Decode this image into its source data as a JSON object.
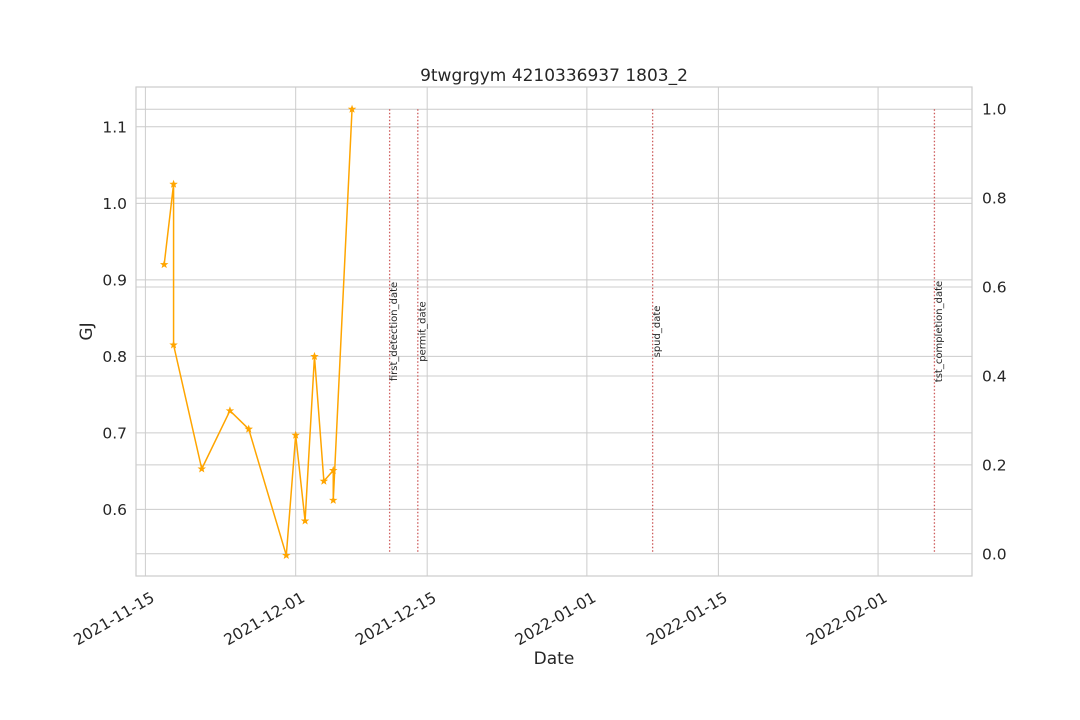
{
  "chart_data": {
    "type": "line",
    "title": "9twgrgym 4210336937 1803_2",
    "xlabel": "Date",
    "ylabel": "GJ",
    "ylabel_color": "#1f77b4",
    "x_type": "date",
    "xlim": [
      "2021-11-14",
      "2022-02-11"
    ],
    "ylim": [
      0.513,
      1.152
    ],
    "ylim_right": [
      -0.05,
      1.05
    ],
    "x_ticks": [
      "2021-11-15",
      "2021-12-01",
      "2021-12-15",
      "2022-01-01",
      "2022-01-15",
      "2022-02-01"
    ],
    "y_ticks": [
      "0.6",
      "0.7",
      "0.8",
      "0.9",
      "1.0",
      "1.1"
    ],
    "y_ticks_right": [
      "0.0",
      "0.2",
      "0.4",
      "0.6",
      "0.8",
      "1.0"
    ],
    "grid": true,
    "series": [
      {
        "color": "#ffa500",
        "marker": "star",
        "points": [
          {
            "x": "2021-11-17",
            "y": 0.92
          },
          {
            "x": "2021-11-18",
            "y": 1.025
          },
          {
            "x": "2021-11-18",
            "y": 0.815
          },
          {
            "x": "2021-11-21",
            "y": 0.653
          },
          {
            "x": "2021-11-24",
            "y": 0.729
          },
          {
            "x": "2021-11-26",
            "y": 0.705
          },
          {
            "x": "2021-11-30",
            "y": 0.54
          },
          {
            "x": "2021-12-01",
            "y": 0.697
          },
          {
            "x": "2021-12-02",
            "y": 0.585
          },
          {
            "x": "2021-12-03",
            "y": 0.8
          },
          {
            "x": "2021-12-04",
            "y": 0.637
          },
          {
            "x": "2021-12-05",
            "y": 0.651
          },
          {
            "x": "2021-12-05",
            "y": 0.612
          },
          {
            "x": "2021-12-07",
            "y": 1.123
          }
        ]
      }
    ],
    "events": [
      {
        "label": "first_detection_date",
        "x": "2021-12-11"
      },
      {
        "label": "permit_date",
        "x": "2021-12-14"
      },
      {
        "label": "spud_date",
        "x": "2022-01-08"
      },
      {
        "label": "tst_completion_date",
        "x": "2022-02-07"
      }
    ],
    "event_color": "#cd5c5c"
  }
}
